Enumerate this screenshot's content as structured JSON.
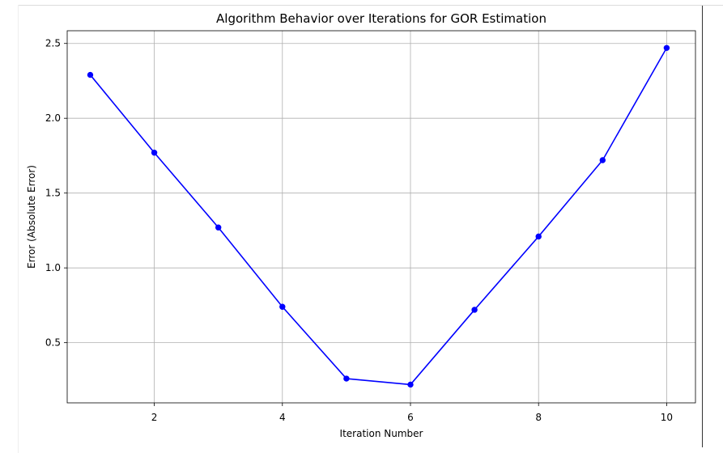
{
  "chart_data": {
    "type": "line",
    "title": "Algorithm Behavior over Iterations for GOR Estimation",
    "xlabel": "Iteration Number",
    "ylabel": "Error (Absolute Error)",
    "x": [
      1,
      2,
      3,
      4,
      5,
      6,
      7,
      8,
      9,
      10
    ],
    "series": [
      {
        "values": [
          2.29,
          1.77,
          1.27,
          0.74,
          0.26,
          0.22,
          0.72,
          1.21,
          1.72,
          2.47
        ],
        "color": "#0000ff",
        "marker": "circle"
      }
    ],
    "xlim": [
      0.64,
      10.45
    ],
    "ylim": [
      0.098,
      2.585
    ],
    "xticks": [
      2,
      4,
      6,
      8,
      10
    ],
    "xtick_labels": [
      "2",
      "4",
      "6",
      "8",
      "10"
    ],
    "yticks": [
      0.5,
      1.0,
      1.5,
      2.0,
      2.5
    ],
    "ytick_labels": [
      "0.5",
      "1.0",
      "1.5",
      "2.0",
      "2.5"
    ],
    "grid": true,
    "grid_color": "#b0b0b0",
    "axis_color": "#000000"
  }
}
